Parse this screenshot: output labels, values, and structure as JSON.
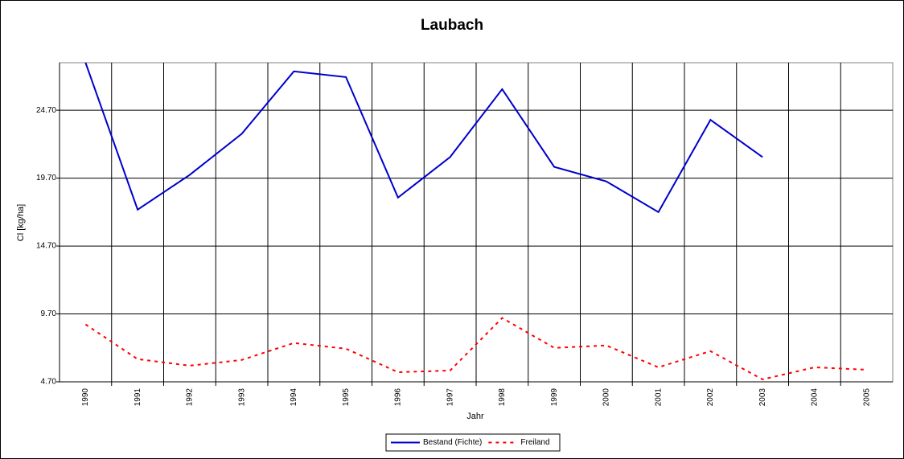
{
  "chart_data": {
    "type": "line",
    "title": "Laubach",
    "x_label": "Jahr",
    "y_label": "Cl [kg/ha]",
    "categories": [
      "1990",
      "1991",
      "1992",
      "1993",
      "1994",
      "1995",
      "1996",
      "1997",
      "1998",
      "1999",
      "2000",
      "2001",
      "2002",
      "2003",
      "2004",
      "2005"
    ],
    "series": [
      {
        "name": "Bestand (Fichte)",
        "color": "#0000cc",
        "dash": "solid",
        "values": [
          28.2,
          17.38,
          19.94,
          22.97,
          27.56,
          27.14,
          18.27,
          21.25,
          26.25,
          20.53,
          19.46,
          17.2,
          23.99,
          21.25,
          null,
          null
        ]
      },
      {
        "name": "Freiland",
        "color": "#ff0000",
        "dash": "dotted",
        "values": [
          8.93,
          6.37,
          5.89,
          6.31,
          7.56,
          7.14,
          5.41,
          5.53,
          9.4,
          7.2,
          7.38,
          5.77,
          6.96,
          4.88,
          5.77,
          5.59
        ]
      }
    ],
    "ylim": [
      4.7,
      28.2
    ],
    "yticks": [
      {
        "value": 4.7,
        "label": "4.70"
      },
      {
        "value": 9.7,
        "label": "9.70"
      },
      {
        "value": 14.7,
        "label": "14.70"
      },
      {
        "value": 19.7,
        "label": "19.70"
      },
      {
        "value": 24.7,
        "label": "24.70"
      }
    ],
    "grid": true,
    "legend": "bottom"
  }
}
